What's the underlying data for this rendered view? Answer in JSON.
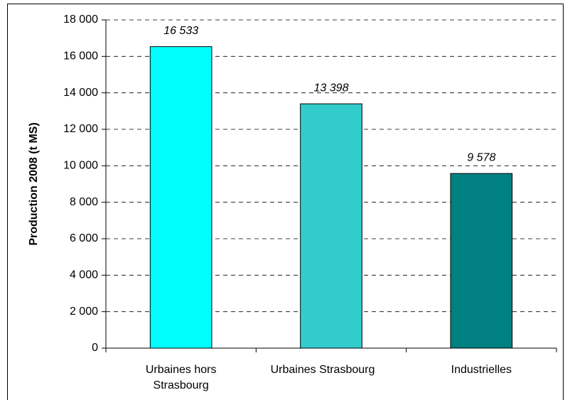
{
  "chart_data": {
    "type": "bar",
    "y_label": "Production 2008 (t MS)",
    "categories": [
      "Urbaines hors Strasbourg",
      "Urbaines Strasbourg",
      "Industrielles"
    ],
    "values": [
      16533,
      13398,
      9578
    ],
    "value_labels": [
      "16 533",
      "13 398",
      "9 578"
    ],
    "colors": [
      "#00ffff",
      "#33cccc",
      "#008080"
    ],
    "ylim": [
      0,
      18000
    ],
    "yticks": [
      {
        "value": 0,
        "label": "0"
      },
      {
        "value": 2000,
        "label": "2 000"
      },
      {
        "value": 4000,
        "label": "4 000"
      },
      {
        "value": 6000,
        "label": "6 000"
      },
      {
        "value": 8000,
        "label": "8 000"
      },
      {
        "value": 10000,
        "label": "10 000"
      },
      {
        "value": 12000,
        "label": "12 000"
      },
      {
        "value": 14000,
        "label": "14 000"
      },
      {
        "value": 16000,
        "label": "16 000"
      },
      {
        "value": 18000,
        "label": "18 000"
      }
    ],
    "grid": true
  }
}
